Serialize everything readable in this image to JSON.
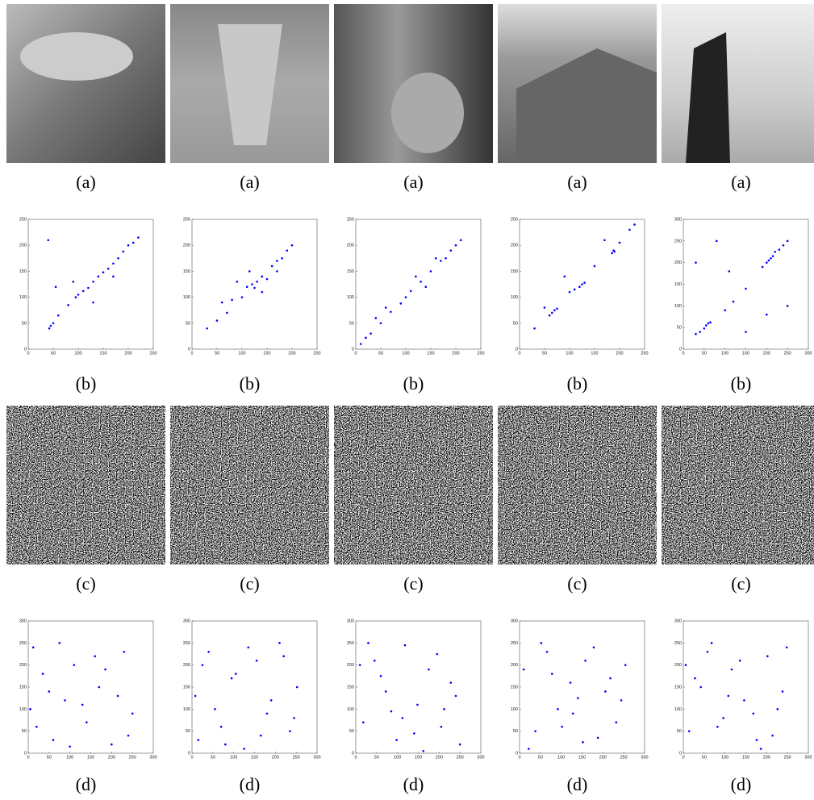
{
  "image_rows": [
    {
      "captions": [
        "(a)",
        "(a)",
        "(a)",
        "(a)",
        "(a)"
      ]
    },
    {
      "captions": [
        "(c)",
        "(c)",
        "(c)",
        "(c)",
        "(c)"
      ]
    }
  ],
  "chart_data": [
    {
      "type": "scatter",
      "caption": "(b)",
      "color": "#0000ff",
      "xlim": [
        0,
        250
      ],
      "ylim": [
        0,
        250
      ],
      "xticks": [
        0,
        50,
        100,
        150,
        200,
        250
      ],
      "yticks": [
        0,
        50,
        100,
        150,
        200,
        250
      ],
      "x": [
        45,
        50,
        42,
        60,
        80,
        95,
        100,
        110,
        120,
        130,
        140,
        150,
        160,
        170,
        180,
        190,
        200,
        210,
        220,
        55,
        130,
        170,
        90,
        40
      ],
      "values": [
        45,
        50,
        40,
        65,
        85,
        100,
        105,
        112,
        118,
        130,
        140,
        148,
        155,
        165,
        175,
        188,
        200,
        205,
        215,
        120,
        90,
        140,
        130,
        210
      ]
    },
    {
      "type": "scatter",
      "caption": "(b)",
      "color": "#0000ff",
      "xlim": [
        0,
        250
      ],
      "ylim": [
        0,
        250
      ],
      "xticks": [
        0,
        50,
        100,
        150,
        200,
        250
      ],
      "yticks": [
        0,
        50,
        100,
        150,
        200,
        250
      ],
      "x": [
        30,
        50,
        70,
        80,
        100,
        110,
        120,
        125,
        130,
        140,
        150,
        160,
        170,
        180,
        190,
        200,
        90,
        140,
        60,
        170,
        115
      ],
      "values": [
        40,
        55,
        70,
        95,
        100,
        120,
        125,
        118,
        130,
        140,
        135,
        160,
        170,
        175,
        190,
        200,
        130,
        110,
        90,
        150,
        150
      ]
    },
    {
      "type": "scatter",
      "caption": "(b)",
      "color": "#0000ff",
      "xlim": [
        0,
        250
      ],
      "ylim": [
        0,
        250
      ],
      "xticks": [
        0,
        50,
        100,
        150,
        200,
        250
      ],
      "yticks": [
        0,
        50,
        100,
        150,
        200,
        250
      ],
      "x": [
        10,
        20,
        30,
        50,
        70,
        90,
        100,
        110,
        130,
        150,
        170,
        190,
        200,
        210,
        60,
        140,
        120,
        180,
        40,
        160
      ],
      "values": [
        10,
        22,
        30,
        50,
        72,
        88,
        100,
        112,
        130,
        150,
        170,
        190,
        200,
        210,
        80,
        120,
        140,
        175,
        60,
        175
      ]
    },
    {
      "type": "scatter",
      "caption": "(b)",
      "color": "#0000ff",
      "xlim": [
        0,
        250
      ],
      "ylim": [
        0,
        250
      ],
      "xticks": [
        0,
        50,
        100,
        150,
        200,
        250
      ],
      "yticks": [
        0,
        50,
        100,
        150,
        200,
        250
      ],
      "x": [
        30,
        60,
        65,
        70,
        75,
        100,
        110,
        120,
        125,
        130,
        185,
        190,
        188,
        200,
        230,
        150,
        90,
        170,
        220,
        50
      ],
      "values": [
        40,
        65,
        70,
        75,
        78,
        110,
        115,
        120,
        125,
        128,
        185,
        188,
        190,
        205,
        240,
        160,
        140,
        210,
        230,
        80
      ]
    },
    {
      "type": "scatter",
      "caption": "(b)",
      "color": "#0000ff",
      "xlim": [
        0,
        300
      ],
      "ylim": [
        0,
        300
      ],
      "xticks": [
        0,
        50,
        100,
        150,
        200,
        250,
        300
      ],
      "yticks": [
        0,
        50,
        100,
        150,
        200,
        250,
        300
      ],
      "x": [
        30,
        40,
        50,
        55,
        60,
        65,
        100,
        120,
        150,
        190,
        200,
        205,
        210,
        215,
        220,
        230,
        240,
        250,
        80,
        150,
        250,
        30,
        200,
        110
      ],
      "values": [
        35,
        40,
        48,
        55,
        60,
        62,
        90,
        110,
        140,
        190,
        200,
        205,
        210,
        215,
        225,
        230,
        240,
        250,
        250,
        40,
        100,
        200,
        80,
        180
      ]
    },
    {
      "type": "scatter",
      "caption": "(d)",
      "color": "#0000ff",
      "xlim": [
        0,
        300
      ],
      "ylim": [
        0,
        300
      ],
      "xticks": [
        0,
        50,
        100,
        150,
        200,
        250,
        300
      ],
      "yticks": [
        0,
        50,
        100,
        150,
        200,
        250,
        300
      ],
      "x": [
        12,
        35,
        60,
        88,
        110,
        140,
        170,
        200,
        230,
        250,
        20,
        75,
        130,
        185,
        240,
        50,
        100,
        160,
        215,
        5
      ],
      "values": [
        240,
        180,
        30,
        120,
        200,
        70,
        150,
        20,
        230,
        90,
        60,
        250,
        110,
        190,
        40,
        140,
        15,
        220,
        130,
        100
      ]
    },
    {
      "type": "scatter",
      "caption": "(d)",
      "color": "#0000ff",
      "xlim": [
        0,
        300
      ],
      "ylim": [
        0,
        300
      ],
      "xticks": [
        0,
        50,
        100,
        150,
        200,
        250,
        300
      ],
      "yticks": [
        0,
        50,
        100,
        150,
        200,
        250,
        300
      ],
      "x": [
        8,
        40,
        70,
        95,
        125,
        155,
        180,
        210,
        235,
        252,
        25,
        80,
        135,
        190,
        245,
        55,
        105,
        165,
        220,
        15
      ],
      "values": [
        130,
        230,
        60,
        170,
        10,
        210,
        90,
        250,
        50,
        150,
        200,
        20,
        240,
        120,
        80,
        100,
        180,
        40,
        220,
        30
      ]
    },
    {
      "type": "scatter",
      "caption": "(d)",
      "color": "#0000ff",
      "xlim": [
        0,
        300
      ],
      "ylim": [
        0,
        300
      ],
      "xticks": [
        0,
        50,
        100,
        150,
        200,
        250,
        300
      ],
      "yticks": [
        0,
        50,
        100,
        150,
        200,
        250,
        300
      ],
      "x": [
        18,
        45,
        72,
        98,
        118,
        148,
        175,
        205,
        228,
        250,
        30,
        85,
        140,
        195,
        240,
        60,
        112,
        162,
        212,
        10
      ],
      "values": [
        70,
        210,
        140,
        30,
        245,
        110,
        190,
        60,
        160,
        20,
        250,
        95,
        45,
        225,
        130,
        175,
        80,
        5,
        100,
        200
      ]
    },
    {
      "type": "scatter",
      "caption": "(d)",
      "color": "#0000ff",
      "xlim": [
        0,
        300
      ],
      "ylim": [
        0,
        300
      ],
      "xticks": [
        0,
        50,
        100,
        150,
        200,
        250,
        300
      ],
      "yticks": [
        0,
        50,
        100,
        150,
        200,
        250,
        300
      ],
      "x": [
        10,
        38,
        66,
        92,
        122,
        152,
        178,
        206,
        232,
        254,
        22,
        78,
        128,
        188,
        244,
        52,
        102,
        158,
        218,
        140
      ],
      "values": [
        190,
        50,
        230,
        100,
        160,
        25,
        240,
        140,
        70,
        200,
        10,
        180,
        90,
        35,
        120,
        250,
        60,
        210,
        170,
        125
      ]
    },
    {
      "type": "scatter",
      "caption": "(d)",
      "color": "#0000ff",
      "xlim": [
        0,
        300
      ],
      "ylim": [
        0,
        300
      ],
      "xticks": [
        0,
        50,
        100,
        150,
        200,
        250,
        300
      ],
      "yticks": [
        0,
        50,
        100,
        150,
        200,
        250,
        300
      ],
      "x": [
        14,
        42,
        68,
        96,
        116,
        146,
        176,
        202,
        226,
        248,
        28,
        82,
        136,
        186,
        238,
        58,
        108,
        168,
        214,
        6
      ],
      "values": [
        50,
        150,
        250,
        80,
        190,
        120,
        30,
        220,
        100,
        240,
        170,
        60,
        210,
        10,
        140,
        230,
        130,
        90,
        40,
        200
      ]
    }
  ]
}
